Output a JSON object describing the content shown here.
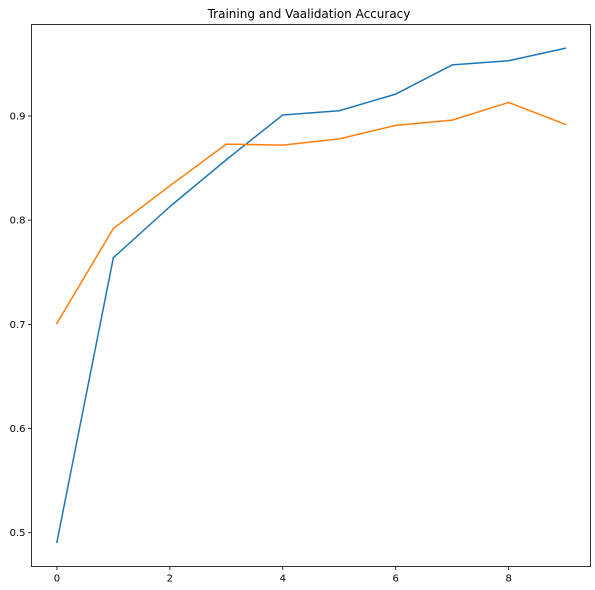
{
  "chart_data": {
    "type": "line",
    "title": "Training and Vaalidation Accuracy",
    "xlabel": "",
    "ylabel": "",
    "x": [
      0,
      1,
      2,
      3,
      4,
      5,
      6,
      7,
      8,
      9
    ],
    "xlim": [
      -0.45,
      9.45
    ],
    "ylim": [
      0.4676,
      0.9878
    ],
    "xticks": [
      0,
      2,
      4,
      6,
      8
    ],
    "yticks": [
      0.5,
      0.6,
      0.7,
      0.8,
      0.9
    ],
    "grid": false,
    "legend": "none",
    "series": [
      {
        "color": "#1f77b4",
        "values": [
          0.491,
          0.764,
          0.813,
          0.858,
          0.901,
          0.905,
          0.921,
          0.949,
          0.953,
          0.965
        ]
      },
      {
        "color": "#ff7f0e",
        "values": [
          0.701,
          0.792,
          0.833,
          0.873,
          0.872,
          0.878,
          0.891,
          0.896,
          0.913,
          0.892
        ]
      }
    ]
  }
}
